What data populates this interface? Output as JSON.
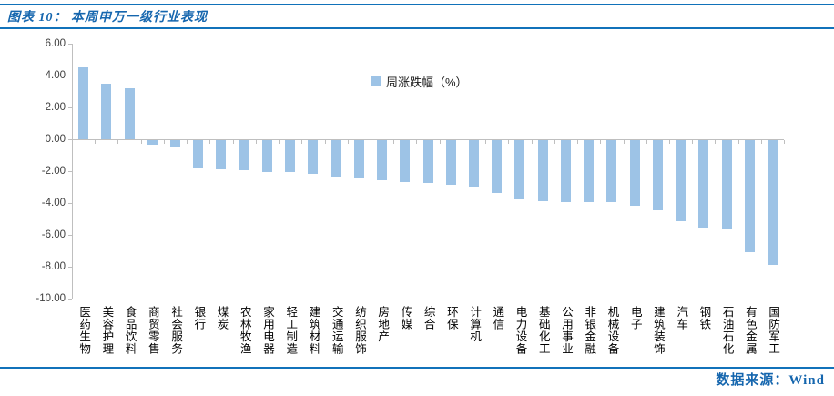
{
  "header": {
    "rule_color": "#1172BA"
  },
  "chart_data": {
    "type": "bar",
    "title": "图表 10： 本周申万一级行业表现",
    "legend": [
      "周涨跌幅（%）"
    ],
    "legend_position": "top-center",
    "grid": false,
    "bar_color": "#9DC3E6",
    "ylim": [
      -10,
      6
    ],
    "ytick_step": 2,
    "ytick_labels": [
      "6.00",
      "4.00",
      "2.00",
      "0.00",
      "-2.00",
      "-4.00",
      "-6.00",
      "-8.00",
      "-10.00"
    ],
    "categories": [
      "医药生物",
      "美容护理",
      "食品饮料",
      "商贸零售",
      "社会服务",
      "银行",
      "煤炭",
      "农林牧渔",
      "家用电器",
      "轻工制造",
      "建筑材料",
      "交通运输",
      "纺织服饰",
      "房地产",
      "传媒",
      "综合",
      "环保",
      "计算机",
      "通信",
      "电力设备",
      "基础化工",
      "公用事业",
      "非银金融",
      "机械设备",
      "电子",
      "建筑装饰",
      "汽车",
      "钢铁",
      "石油石化",
      "有色金属",
      "国防军工"
    ],
    "values": [
      4.5,
      3.5,
      3.2,
      -0.3,
      -0.4,
      -1.7,
      -1.8,
      -1.9,
      -2.0,
      -2.0,
      -2.1,
      -2.3,
      -2.4,
      -2.5,
      -2.6,
      -2.7,
      -2.8,
      -2.9,
      -3.3,
      -3.7,
      -3.8,
      -3.9,
      -3.9,
      -3.9,
      -4.1,
      -4.4,
      -5.1,
      -5.5,
      -5.6,
      -7.0,
      -7.8
    ]
  },
  "footer": {
    "source": "数据来源：Wind"
  }
}
